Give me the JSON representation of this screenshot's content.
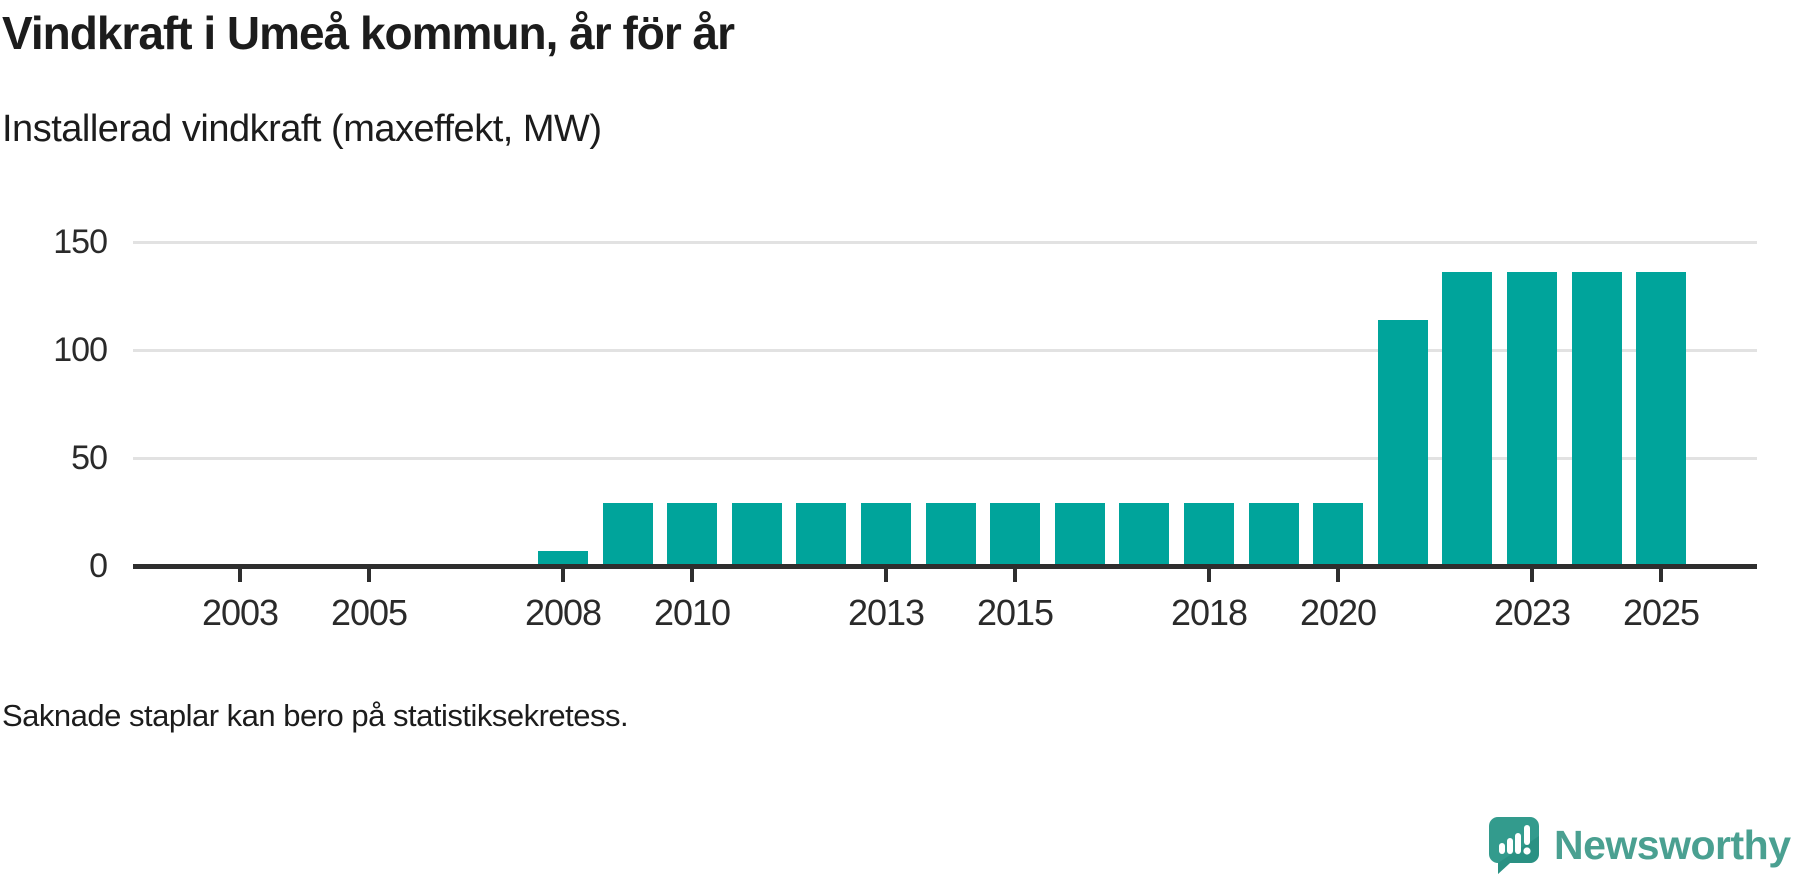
{
  "header": {
    "title": "Vindkraft i Umeå kommun, år för år",
    "subtitle": "Installerad vindkraft (maxeffekt, MW)"
  },
  "footnote": "Saknade staplar kan bero på statistiksekretess.",
  "branding": {
    "wordmark": "Newsworthy",
    "icon": "bar-chart-speech-bubble-icon",
    "icon_color": "#339b8d",
    "icon_shade_color": "#1f8578",
    "text_color": "#4aa091"
  },
  "chart_data": {
    "type": "bar",
    "title": "Vindkraft i Umeå kommun, år för år",
    "ylabel": "Installerad vindkraft (maxeffekt, MW)",
    "xlabel": "",
    "x": [
      2002,
      2003,
      2004,
      2005,
      2006,
      2007,
      2008,
      2009,
      2010,
      2011,
      2012,
      2013,
      2014,
      2015,
      2016,
      2017,
      2018,
      2019,
      2020,
      2021,
      2022,
      2023,
      2024,
      2025
    ],
    "values": [
      null,
      null,
      null,
      null,
      null,
      null,
      7,
      29,
      29,
      29,
      29,
      29,
      29,
      29,
      29,
      29,
      29,
      29,
      29,
      114,
      136,
      136,
      136,
      136
    ],
    "x_tick_labels": [
      2003,
      2005,
      2008,
      2010,
      2013,
      2015,
      2018,
      2020,
      2023,
      2025
    ],
    "y_ticks": [
      0,
      50,
      100,
      150
    ],
    "ylim": [
      0,
      150
    ],
    "grid": "horizontal",
    "legend": "none",
    "bar_color": "#00a49b",
    "axis_color": "#2e2e2e",
    "gridline_color": "#e2e2e2",
    "missing_years_note": "2002–2007 have no bars (missing data)"
  }
}
